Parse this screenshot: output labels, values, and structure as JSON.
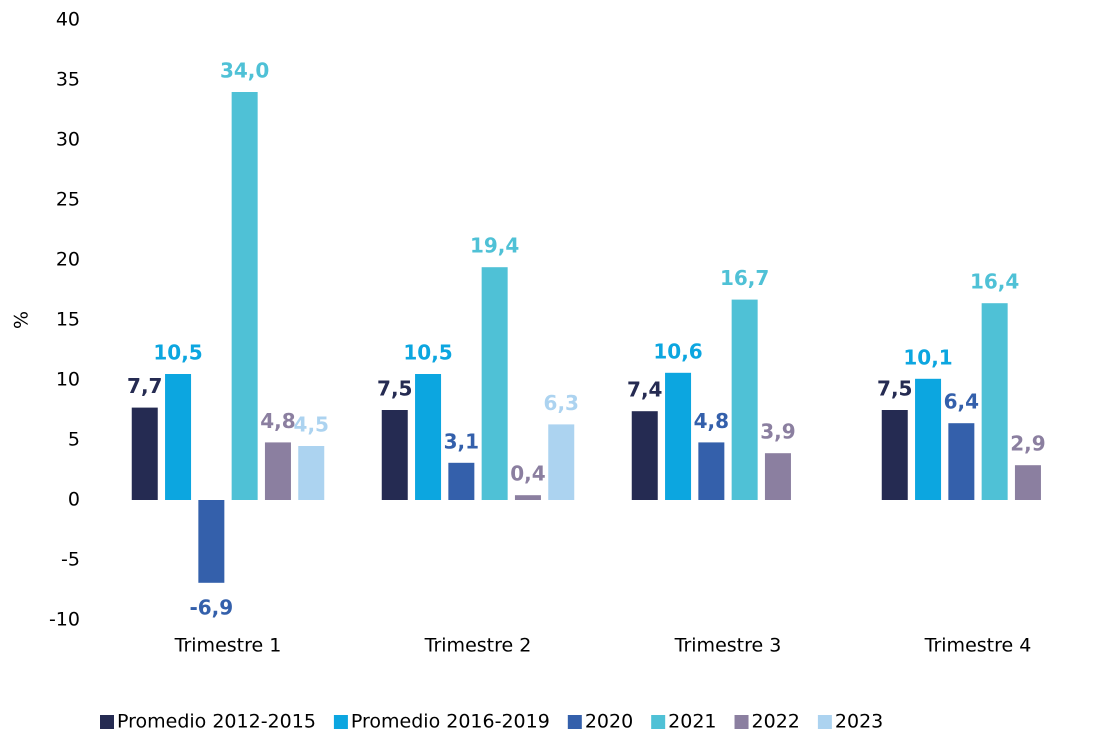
{
  "chart_data": {
    "type": "bar",
    "y_label": "%",
    "categories": [
      "Trimestre 1",
      "Trimestre 2",
      "Trimestre 3",
      "Trimestre 4"
    ],
    "series": [
      {
        "name": "Promedio 2012-2015",
        "color": "#252b52",
        "values": [
          7.7,
          7.5,
          7.4,
          7.5
        ],
        "value_labels": [
          "7,7",
          "7,5",
          "7,4",
          "7,5"
        ]
      },
      {
        "name": "Promedio 2016-2019",
        "color": "#0ca6e0",
        "values": [
          10.5,
          10.5,
          10.6,
          10.1
        ],
        "value_labels": [
          "10,5",
          "10,5",
          "10,6",
          "10,1"
        ]
      },
      {
        "name": "2020",
        "color": "#3460ab",
        "values": [
          -6.9,
          3.1,
          4.8,
          6.4
        ],
        "value_labels": [
          "-6,9",
          "3,1",
          "4,8",
          "6,4"
        ]
      },
      {
        "name": "2021",
        "color": "#4fc1d6",
        "values": [
          34.0,
          19.4,
          16.7,
          16.4
        ],
        "value_labels": [
          "34,0",
          "19,4",
          "16,7",
          "16,4"
        ]
      },
      {
        "name": "2022",
        "color": "#8b7fa0",
        "values": [
          4.8,
          0.4,
          3.9,
          2.9
        ],
        "value_labels": [
          "4,8",
          "0,4",
          "3,9",
          "2,9"
        ]
      },
      {
        "name": "2023",
        "color": "#acd3f0",
        "values": [
          4.5,
          6.3,
          null,
          null
        ],
        "value_labels": [
          "4,5",
          "6,3",
          null,
          null
        ]
      }
    ],
    "ylim": [
      -10,
      40
    ],
    "yticks": [
      -10,
      -5,
      0,
      5,
      10,
      15,
      20,
      25,
      30,
      35,
      40
    ],
    "grid": false,
    "legend": "bottom"
  }
}
